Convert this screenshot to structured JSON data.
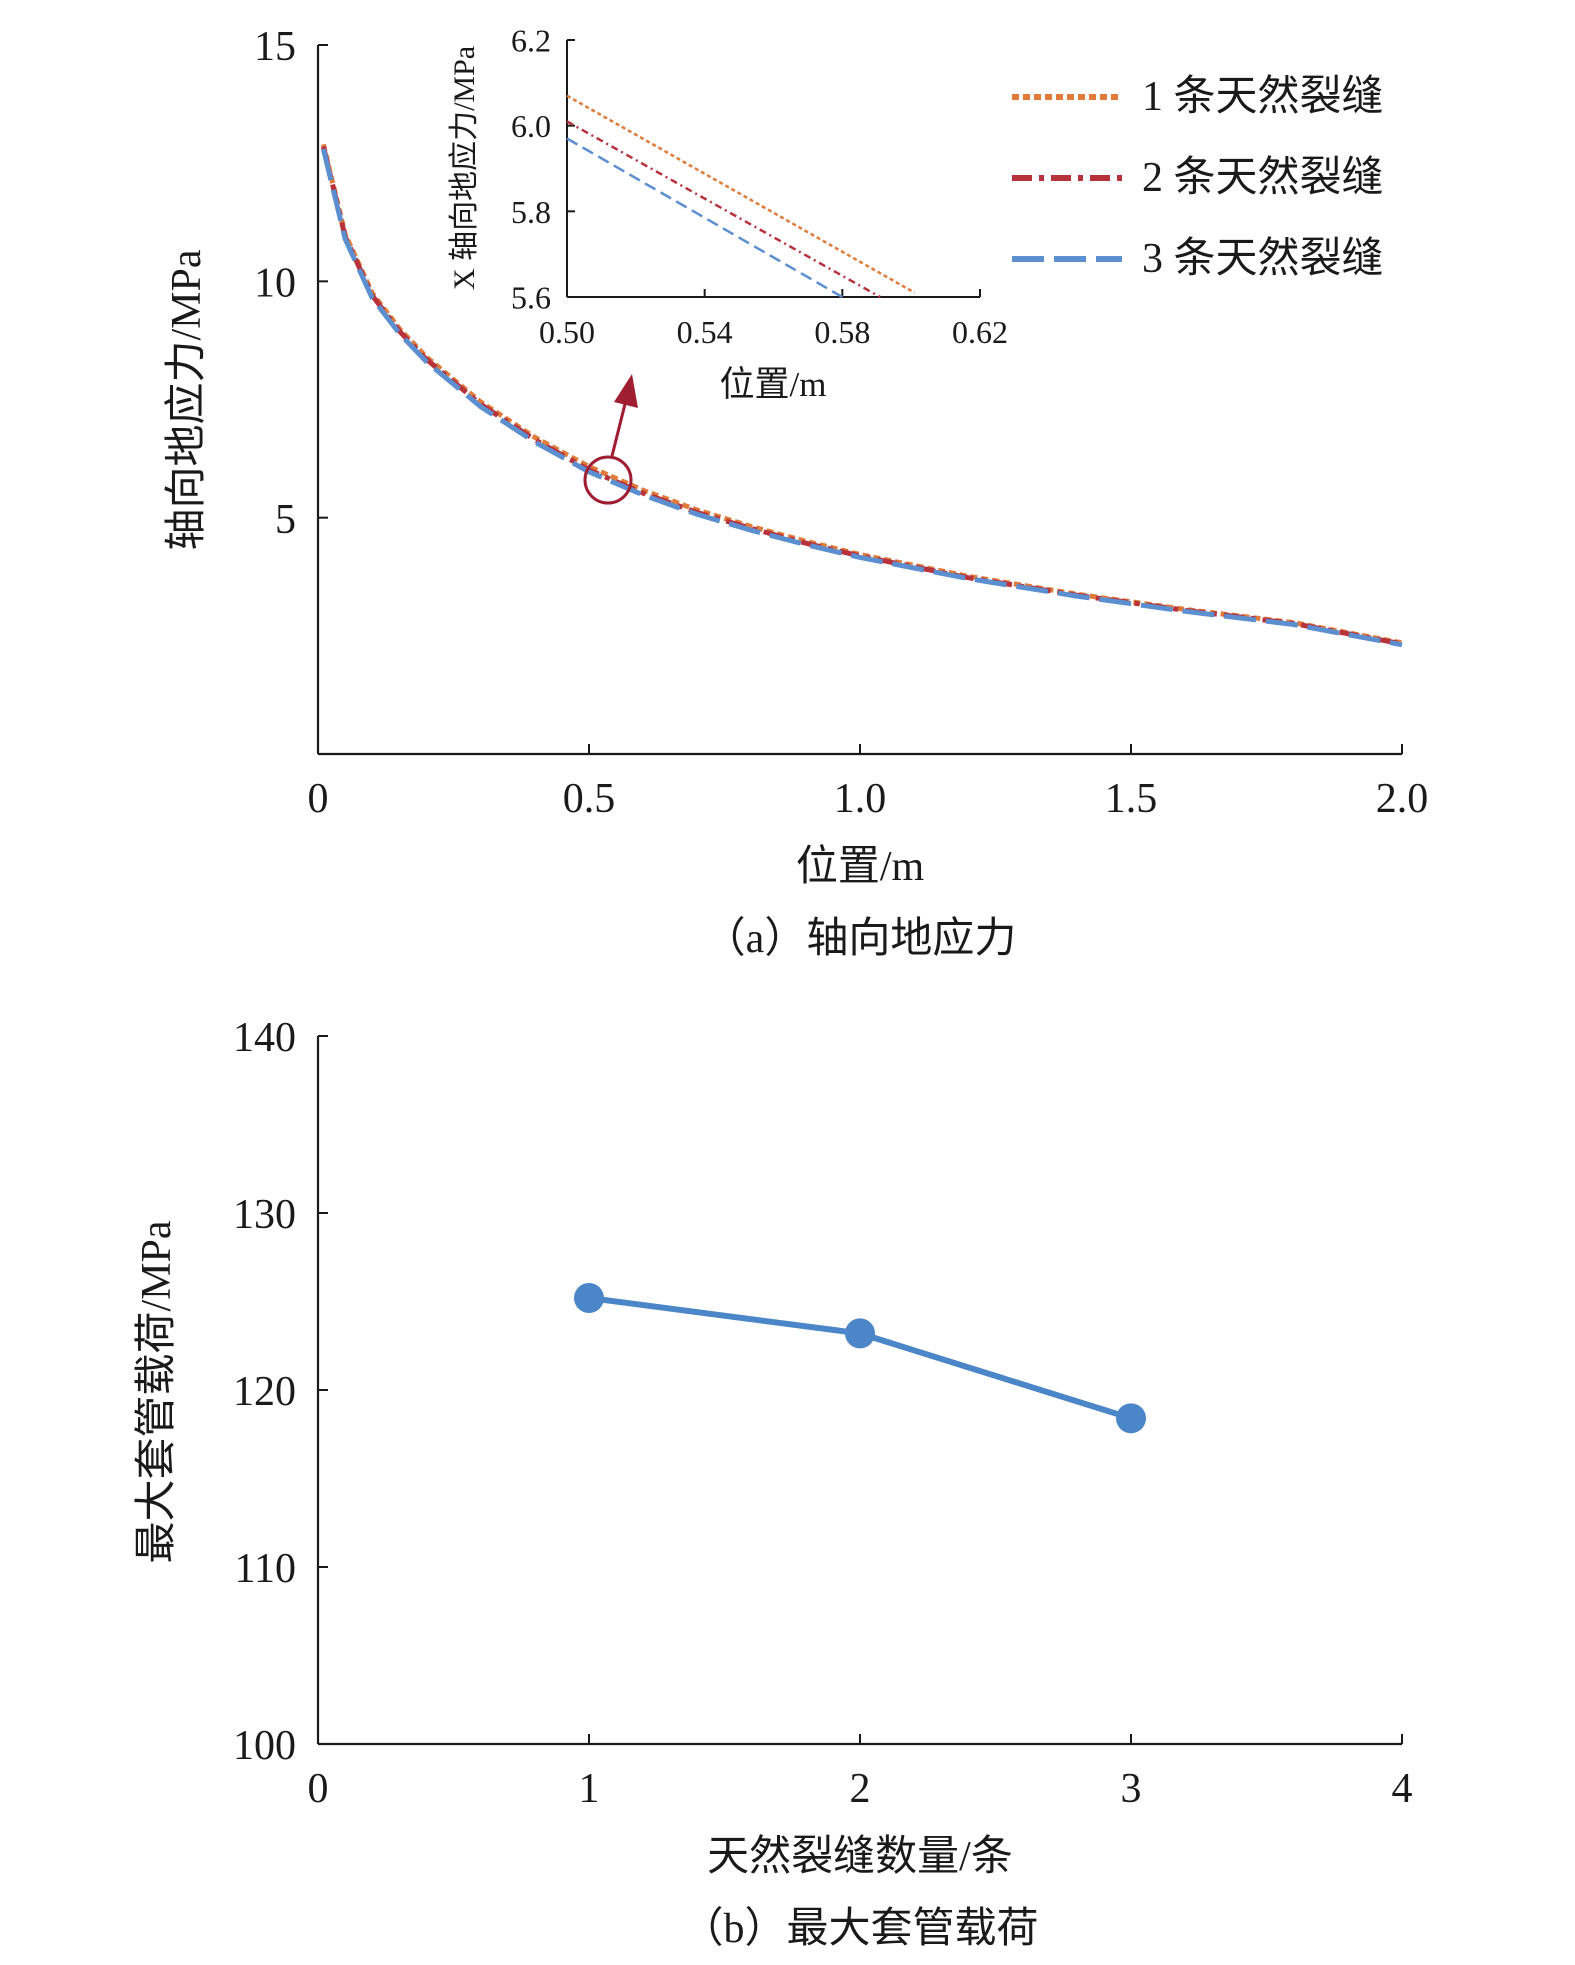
{
  "chart_data": [
    {
      "type": "line",
      "caption": "（a）轴向地应力",
      "xlabel": "位置/m",
      "ylabel": "轴向地应力/MPa",
      "xlim": [
        0,
        2.0
      ],
      "ylim": [
        0,
        15
      ],
      "x_ticks": [
        "0",
        "0.5",
        "1.0",
        "1.5",
        "2.0"
      ],
      "y_ticks": [
        "5",
        "10",
        "15"
      ],
      "grid": false,
      "legend_position": "top-right",
      "series": [
        {
          "name": "1 条天然裂缝",
          "color": "#e07b39",
          "dash": "dotted",
          "x": [
            0.01,
            0.05,
            0.1,
            0.15,
            0.2,
            0.3,
            0.4,
            0.5,
            0.6,
            0.7,
            0.8,
            0.9,
            1.0,
            1.2,
            1.4,
            1.6,
            1.8,
            2.0
          ],
          "y": [
            12.9,
            11.0,
            9.75,
            9.0,
            8.4,
            7.45,
            6.7,
            6.08,
            5.58,
            5.16,
            4.81,
            4.5,
            4.22,
            3.76,
            3.38,
            3.06,
            2.78,
            2.35
          ]
        },
        {
          "name": "2 条天然裂缝",
          "color": "#b8323c",
          "dash": "dash-dot",
          "x": [
            0.01,
            0.05,
            0.1,
            0.15,
            0.2,
            0.3,
            0.4,
            0.5,
            0.6,
            0.7,
            0.8,
            0.9,
            1.0,
            1.2,
            1.4,
            1.6,
            1.8,
            2.0
          ],
          "y": [
            12.85,
            10.95,
            9.7,
            8.95,
            8.35,
            7.4,
            6.65,
            6.01,
            5.52,
            5.11,
            4.77,
            4.46,
            4.19,
            3.73,
            3.36,
            3.04,
            2.76,
            2.33
          ]
        },
        {
          "name": "3 条天然裂缝",
          "color": "#5b8fd0",
          "dash": "long-dash",
          "x": [
            0.01,
            0.05,
            0.1,
            0.15,
            0.2,
            0.3,
            0.4,
            0.5,
            0.6,
            0.7,
            0.8,
            0.9,
            1.0,
            1.2,
            1.4,
            1.6,
            1.8,
            2.0
          ],
          "y": [
            12.8,
            10.9,
            9.65,
            8.9,
            8.3,
            7.35,
            6.6,
            5.97,
            5.48,
            5.07,
            4.73,
            4.43,
            4.16,
            3.71,
            3.34,
            3.02,
            2.74,
            2.31
          ]
        }
      ],
      "annotation": {
        "circle_at": {
          "x": 0.54,
          "y": 5.8
        },
        "arrow": "points to inset"
      }
    },
    {
      "type": "line",
      "caption": "inset",
      "xlabel": "位置/m",
      "ylabel": "X 轴向地应力/MPa",
      "xlim": [
        0.5,
        0.62
      ],
      "ylim": [
        5.6,
        6.2
      ],
      "x_ticks": [
        "0.50",
        "0.54",
        "0.58",
        "0.62"
      ],
      "y_ticks": [
        "5.6",
        "5.8",
        "6.0",
        "6.2"
      ],
      "grid": false,
      "series": [
        {
          "name": "1 条天然裂缝",
          "color": "#e07b39",
          "x": [
            0.5,
            0.601
          ],
          "y": [
            6.07,
            5.61
          ]
        },
        {
          "name": "2 条天然裂缝",
          "color": "#b8323c",
          "x": [
            0.5,
            0.591
          ],
          "y": [
            6.01,
            5.6
          ]
        },
        {
          "name": "3 条天然裂缝",
          "color": "#5b8fd0",
          "x": [
            0.5,
            0.58
          ],
          "y": [
            5.97,
            5.6
          ]
        }
      ]
    },
    {
      "type": "line",
      "caption": "（b）最大套管载荷",
      "xlabel": "天然裂缝数量/条",
      "ylabel": "最大套管载荷/MPa",
      "xlim": [
        0,
        4
      ],
      "ylim": [
        100,
        140
      ],
      "x_ticks": [
        "0",
        "1",
        "2",
        "3",
        "4"
      ],
      "y_ticks": [
        "100",
        "110",
        "120",
        "130",
        "140"
      ],
      "grid": false,
      "series": [
        {
          "name": "",
          "color": "#4a86c8",
          "x": [
            1,
            2,
            3
          ],
          "y": [
            125.2,
            123.2,
            118.4
          ]
        }
      ]
    }
  ]
}
